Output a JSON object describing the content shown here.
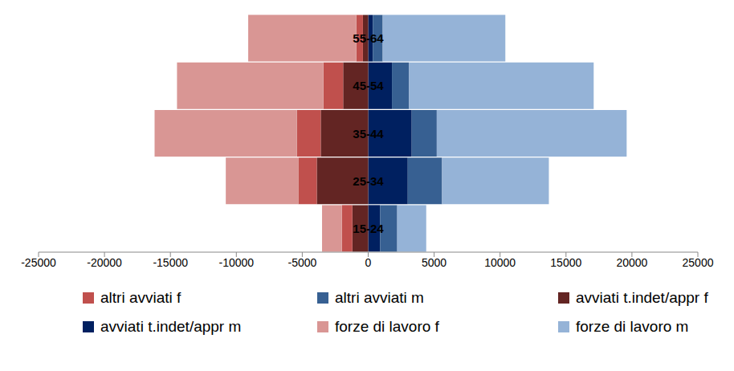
{
  "chart_data": {
    "type": "bar",
    "orientation": "horizontal",
    "stacked": true,
    "grid": false,
    "legend": "bottom",
    "categories": [
      "55-64",
      "45-54",
      "35-44",
      "25-34",
      "15-24"
    ],
    "xlim": [
      -25000,
      25000
    ],
    "xticks": [
      -25000,
      -20000,
      -15000,
      -10000,
      -5000,
      0,
      5000,
      10000,
      15000,
      20000,
      25000
    ],
    "series": [
      {
        "name": "avviati t.indet/appr m",
        "color": "#002060",
        "values": [
          350,
          1800,
          3300,
          3000,
          900
        ]
      },
      {
        "name": "altri avviati m",
        "color": "#376092",
        "values": [
          750,
          1300,
          1900,
          2600,
          1300
        ]
      },
      {
        "name": "forze di lavoro m",
        "color": "#95b3d7",
        "values": [
          9300,
          14000,
          14400,
          8100,
          2200
        ]
      },
      {
        "name": "avviati t.indet/appr f",
        "color": "#632523",
        "values": [
          -400,
          -1900,
          -3600,
          -3900,
          -1200
        ]
      },
      {
        "name": "altri avviati f",
        "color": "#c0504d",
        "values": [
          -500,
          -1500,
          -1800,
          -1400,
          -800
        ]
      },
      {
        "name": "forze di lavoro f",
        "color": "#d99694",
        "values": [
          -8200,
          -11100,
          -10800,
          -5500,
          -1500
        ]
      }
    ]
  }
}
